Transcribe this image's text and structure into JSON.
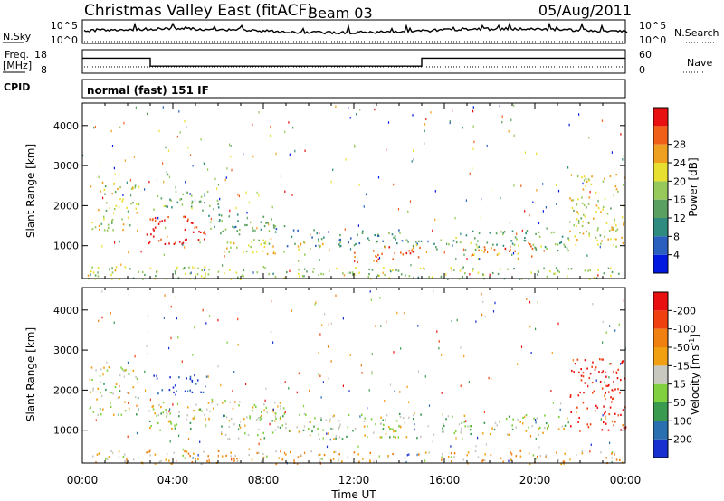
{
  "header": {
    "site": "Christmas Valley East (fitACF)",
    "beam": "Beam 03",
    "date": "05/Aug/2011"
  },
  "top_panels": {
    "nsky": {
      "label": "N.Sky",
      "ytick_high": "10^5",
      "ytick_low": "10^0",
      "right_label": "N.Search",
      "right_high": "10^5",
      "right_low": "10^0"
    },
    "freq": {
      "label_line1": "Freq.",
      "label_line2": "[MHz]",
      "ytick_high": "18",
      "ytick_low": "8",
      "right_label": "Nave",
      "right_high": "60",
      "right_low": "0",
      "segments": [
        {
          "start_hour": 0,
          "end_hour": 3,
          "freq": 14.8
        },
        {
          "start_hour": 3,
          "end_hour": 15,
          "freq": 10.4
        },
        {
          "start_hour": 15,
          "end_hour": 24,
          "freq": 14.8
        }
      ],
      "nave": 12
    },
    "cpid": {
      "label": "CPID",
      "text": "normal (fast) 151 IF"
    }
  },
  "chart_data": [
    {
      "type": "heatmap",
      "name": "power",
      "ylabel": "Slant Range [km]",
      "ylim": [
        180,
        4560
      ],
      "yticks": [
        1000,
        2000,
        3000,
        4000
      ],
      "xlim": [
        0,
        24
      ],
      "x_ticks": [
        "00:00",
        "04:00",
        "08:00",
        "12:00",
        "16:00",
        "20:00",
        "00:00"
      ],
      "colorbar": {
        "label": "Power [dB]",
        "ticks": [
          "4",
          "8",
          "12",
          "16",
          "20",
          "24",
          "28"
        ],
        "colors": [
          "#0018e0",
          "#2a5fc0",
          "#2f8a80",
          "#5aa060",
          "#96c85a",
          "#e8e030",
          "#f0a020",
          "#f06018",
          "#e81010"
        ]
      },
      "regions": [
        {
          "t": [
            0.3,
            2.5
          ],
          "r": [
            1400,
            2600
          ],
          "level": 0.55
        },
        {
          "t": [
            2.8,
            5.5
          ],
          "r": [
            1000,
            1800
          ],
          "level": 0.95
        },
        {
          "t": [
            3,
            6
          ],
          "r": [
            1900,
            2400
          ],
          "level": 0.4
        },
        {
          "t": [
            5.5,
            9
          ],
          "r": [
            1300,
            1800
          ],
          "level": 0.35
        },
        {
          "t": [
            6,
            11
          ],
          "r": [
            800,
            1200
          ],
          "level": 0.6
        },
        {
          "t": [
            9,
            15
          ],
          "r": [
            1000,
            1450
          ],
          "level": 0.3
        },
        {
          "t": [
            12,
            15
          ],
          "r": [
            600,
            1000
          ],
          "level": 0.85
        },
        {
          "t": [
            15.5,
            21.5
          ],
          "r": [
            900,
            1400
          ],
          "level": 0.4
        },
        {
          "t": [
            17,
            20
          ],
          "r": [
            700,
            1100
          ],
          "level": 0.75
        },
        {
          "t": [
            21.5,
            24
          ],
          "r": [
            1000,
            2800
          ],
          "level": 0.6
        },
        {
          "t": [
            0,
            24
          ],
          "r": [
            180,
            500
          ],
          "level": 0.5
        }
      ]
    },
    {
      "type": "heatmap",
      "name": "velocity",
      "ylabel": "Slant Range [km]",
      "ylim": [
        180,
        4560
      ],
      "yticks": [
        1000,
        2000,
        3000,
        4000
      ],
      "xlim": [
        0,
        24
      ],
      "xlabel": "Time UT",
      "x_ticks": [
        "00:00",
        "04:00",
        "08:00",
        "12:00",
        "16:00",
        "20:00",
        "00:00"
      ],
      "colorbar": {
        "label": "Velocity [m s^-1]",
        "ticks": [
          "200",
          "100",
          "50",
          "15",
          "-15",
          "-50",
          "-100",
          "-200"
        ],
        "colors": [
          "#1830d0",
          "#2a6fb0",
          "#3a9a50",
          "#80d040",
          "#c8c8c0",
          "#f0a010",
          "#f08010",
          "#f04010",
          "#e81010"
        ]
      },
      "regions": [
        {
          "t": [
            0.3,
            2.5
          ],
          "r": [
            1400,
            2600
          ],
          "level": 0.45
        },
        {
          "t": [
            2.8,
            5.5
          ],
          "r": [
            1000,
            1800
          ],
          "level": 0.45
        },
        {
          "t": [
            3,
            5.5
          ],
          "r": [
            1900,
            2400
          ],
          "level": 0.05
        },
        {
          "t": [
            5.5,
            9
          ],
          "r": [
            1300,
            1800
          ],
          "level": 0.5
        },
        {
          "t": [
            6,
            15
          ],
          "r": [
            800,
            1450
          ],
          "level": 0.45
        },
        {
          "t": [
            15.5,
            21.5
          ],
          "r": [
            900,
            1400
          ],
          "level": 0.45
        },
        {
          "t": [
            21.5,
            24
          ],
          "r": [
            1000,
            2800
          ],
          "level": 0.95
        },
        {
          "t": [
            0,
            24
          ],
          "r": [
            180,
            500
          ],
          "level": 0.6
        }
      ]
    }
  ]
}
